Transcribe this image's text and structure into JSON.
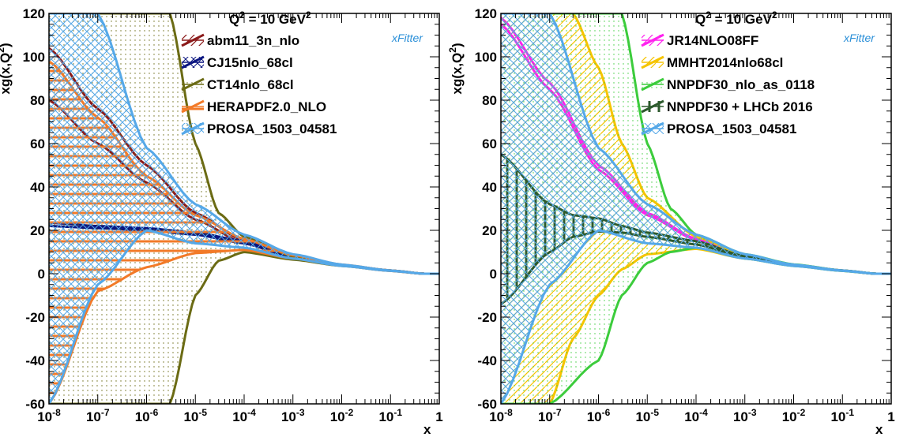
{
  "chart_data": [
    {
      "type": "line",
      "title": "Q² = 10 GeV²",
      "title_parts": {
        "q": "Q",
        "q_exp": "2",
        "mid": " = 10 GeV",
        "unit_exp": "2"
      },
      "xlabel": "x",
      "ylabel": "xg(x,Q²)",
      "ylabel_parts": {
        "pre": "xg(x,Q",
        "exp": "2",
        "post": ")"
      },
      "x_scale": "log",
      "xlim": [
        1e-08,
        1
      ],
      "ylim": [
        -60,
        120
      ],
      "x_tick_labels": [
        {
          "base": "10",
          "exp": "-8",
          "value": 1e-08
        },
        {
          "base": "10",
          "exp": "-7",
          "value": 1e-07
        },
        {
          "base": "10",
          "exp": "-6",
          "value": 1e-06
        },
        {
          "base": "10",
          "exp": "-5",
          "value": 1e-05
        },
        {
          "base": "10",
          "exp": "-4",
          "value": 0.0001
        },
        {
          "base": "10",
          "exp": "-3",
          "value": 0.001
        },
        {
          "base": "10",
          "exp": "-2",
          "value": 0.01
        },
        {
          "base": "10",
          "exp": "-1",
          "value": 0.1
        },
        {
          "base": "1",
          "exp": "",
          "value": 1
        }
      ],
      "y_ticks": [
        -60,
        -40,
        -20,
        0,
        20,
        40,
        60,
        80,
        100,
        120
      ],
      "logo": "xFitter",
      "legend_position": "top-right",
      "series": [
        {
          "name": "abm11_3n_nlo",
          "color": "#8b1a1a",
          "fill": "diagonal-hatch",
          "x": [
            1e-08,
            1e-07,
            1e-06,
            1e-05,
            0.0001,
            0.001,
            0.01,
            0.1,
            0.5
          ],
          "upper": [
            104,
            76,
            50,
            28,
            15,
            8,
            4,
            1.5,
            0
          ],
          "lower": [
            80,
            60,
            42,
            25,
            14,
            7.5,
            3.8,
            1.4,
            0
          ]
        },
        {
          "name": "CJ15nlo_68cl",
          "color": "#0a1580",
          "fill": "cross-hatch",
          "x": [
            1e-08,
            1e-07,
            1e-06,
            1e-05,
            0.0001,
            0.001,
            0.01,
            0.1,
            0.5
          ],
          "upper": [
            23.5,
            22,
            21,
            19,
            15,
            8,
            4,
            1.5,
            0
          ],
          "lower": [
            22,
            21,
            20,
            18,
            14,
            7.5,
            3.8,
            1.4,
            0
          ]
        },
        {
          "name": "CT14nlo_68cl",
          "color": "#6b6b14",
          "fill": "dots",
          "x": [
            1e-08,
            3e-07,
            1e-06,
            3e-06,
            1e-05,
            3e-05,
            0.0001,
            0.001,
            0.01,
            0.1,
            0.5
          ],
          "upper": [
            120,
            120,
            120,
            120,
            60,
            28,
            17,
            8,
            4,
            1.5,
            0
          ],
          "lower": [
            -60,
            -60,
            -60,
            -60,
            -10,
            6,
            10,
            6.5,
            3.6,
            1.3,
            0
          ]
        },
        {
          "name": "HERAPDF2.0_NLO",
          "color": "#f27a28",
          "fill": "horizontal-hatch",
          "x": [
            1e-08,
            1e-07,
            1e-06,
            1e-05,
            0.0001,
            0.001,
            0.01,
            0.1,
            0.5
          ],
          "upper": [
            98,
            72,
            45,
            27,
            16,
            8.5,
            4.2,
            1.5,
            0
          ],
          "lower": [
            -60,
            -8,
            3,
            9.5,
            11,
            7,
            3.7,
            1.3,
            0
          ]
        },
        {
          "name": "PROSA_1503_04581",
          "color": "#55a8e8",
          "fill": "cross-hatch",
          "x": [
            1e-08,
            1e-07,
            1e-06,
            1e-05,
            0.0001,
            0.001,
            0.01,
            0.1,
            0.5
          ],
          "upper": [
            120,
            120,
            58,
            32,
            18,
            9,
            4.2,
            1.5,
            0
          ],
          "lower": [
            -60,
            -5,
            20,
            14,
            12,
            7,
            3.6,
            1.3,
            0
          ]
        }
      ]
    },
    {
      "type": "line",
      "title": "Q² = 10 GeV²",
      "title_parts": {
        "q": "Q",
        "q_exp": "2",
        "mid": " = 10 GeV",
        "unit_exp": "2"
      },
      "xlabel": "x",
      "ylabel": "xg(x,Q²)",
      "ylabel_parts": {
        "pre": "xg(x,Q",
        "exp": "2",
        "post": ")"
      },
      "x_scale": "log",
      "xlim": [
        1e-08,
        1
      ],
      "ylim": [
        -60,
        120
      ],
      "x_tick_labels": [
        {
          "base": "10",
          "exp": "-8",
          "value": 1e-08
        },
        {
          "base": "10",
          "exp": "-7",
          "value": 1e-07
        },
        {
          "base": "10",
          "exp": "-6",
          "value": 1e-06
        },
        {
          "base": "10",
          "exp": "-5",
          "value": 1e-05
        },
        {
          "base": "10",
          "exp": "-4",
          "value": 0.0001
        },
        {
          "base": "10",
          "exp": "-3",
          "value": 0.001
        },
        {
          "base": "10",
          "exp": "-2",
          "value": 0.01
        },
        {
          "base": "10",
          "exp": "-1",
          "value": 0.1
        },
        {
          "base": "1",
          "exp": "",
          "value": 1
        }
      ],
      "y_ticks": [
        -60,
        -40,
        -20,
        0,
        20,
        40,
        60,
        80,
        100,
        120
      ],
      "logo": "xFitter",
      "legend_position": "top-right",
      "series": [
        {
          "name": "JR14NLO08FF",
          "color": "#ff22ee",
          "fill": "diagonal-hatch",
          "x": [
            1e-08,
            1e-07,
            1e-06,
            1e-05,
            0.0001,
            0.001,
            0.01,
            0.1,
            0.5
          ],
          "upper": [
            118,
            88,
            50,
            28,
            16,
            8.5,
            4.2,
            1.5,
            0
          ],
          "lower": [
            115,
            85,
            48,
            27,
            15.5,
            8.2,
            4.0,
            1.4,
            0
          ]
        },
        {
          "name": "MMHT2014nlo68cl",
          "color": "#f5c400",
          "fill": "diagonal-hatch",
          "x": [
            1e-08,
            5e-08,
            1e-07,
            3e-07,
            1e-06,
            3e-06,
            1e-05,
            0.0001,
            0.001,
            0.01,
            0.1,
            0.5
          ],
          "upper": [
            120,
            120,
            120,
            120,
            95,
            60,
            35,
            17,
            8.5,
            4.2,
            1.5,
            0
          ],
          "lower": [
            -60,
            -60,
            -60,
            -30,
            -10,
            2,
            9,
            11.5,
            7,
            3.7,
            1.3,
            0
          ]
        },
        {
          "name": "NNPDF30_nlo_as_0118",
          "color": "#3ccc3c",
          "fill": "dots",
          "x": [
            1e-08,
            1e-07,
            1e-06,
            3e-06,
            1e-05,
            3e-05,
            0.0001,
            0.001,
            0.01,
            0.1,
            0.5
          ],
          "upper": [
            120,
            120,
            120,
            120,
            60,
            30,
            18,
            9,
            4.3,
            1.5,
            0
          ],
          "lower": [
            -60,
            -60,
            -40,
            -10,
            5,
            10,
            12,
            7,
            3.6,
            1.3,
            0
          ]
        },
        {
          "name": "NNPDF30 + LHCb 2016",
          "color": "#2d5a2d",
          "fill": "vertical-hatch",
          "x": [
            1e-08,
            1e-07,
            3e-07,
            1e-06,
            3e-06,
            1e-05,
            0.0001,
            0.001,
            0.01,
            0.1,
            0.5
          ],
          "upper": [
            55,
            32,
            27,
            25.5,
            22,
            19,
            15,
            8,
            4,
            1.5,
            0
          ],
          "lower": [
            -14,
            10,
            17,
            19.5,
            19,
            17,
            13.5,
            7.5,
            3.8,
            1.4,
            0
          ]
        },
        {
          "name": "PROSA_1503_04581",
          "color": "#55a8e8",
          "fill": "cross-hatch",
          "x": [
            1e-08,
            1e-07,
            1e-06,
            1e-05,
            0.0001,
            0.001,
            0.01,
            0.1,
            0.5
          ],
          "upper": [
            120,
            120,
            58,
            32,
            18,
            9,
            4.2,
            1.5,
            0
          ],
          "lower": [
            -60,
            -5,
            20,
            14,
            12,
            7,
            3.6,
            1.3,
            0
          ]
        }
      ]
    }
  ]
}
